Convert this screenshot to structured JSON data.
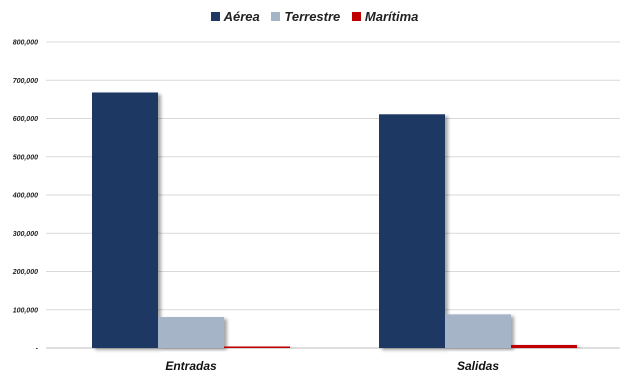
{
  "chart_data": {
    "type": "bar",
    "categories": [
      "Entradas",
      "Salidas"
    ],
    "series": [
      {
        "name": "Aérea",
        "values": [
          668000,
          611000
        ],
        "color": "#1f3864"
      },
      {
        "name": "Terrestre",
        "values": [
          81000,
          88000
        ],
        "color": "#a6b4c8"
      },
      {
        "name": "Marítima",
        "values": [
          4000,
          8000
        ],
        "color": "#c00000"
      }
    ],
    "ylim": [
      0,
      800000
    ],
    "yticks": [
      0,
      100000,
      200000,
      300000,
      400000,
      500000,
      600000,
      700000,
      800000
    ],
    "ytick_labels": [
      "-",
      "100,000",
      "200,000",
      "300,000",
      "400,000",
      "500,000",
      "600,000",
      "700,000",
      "800,000"
    ],
    "title": "",
    "xlabel": "",
    "ylabel": "",
    "grid": true,
    "legend_position": "top-center"
  }
}
